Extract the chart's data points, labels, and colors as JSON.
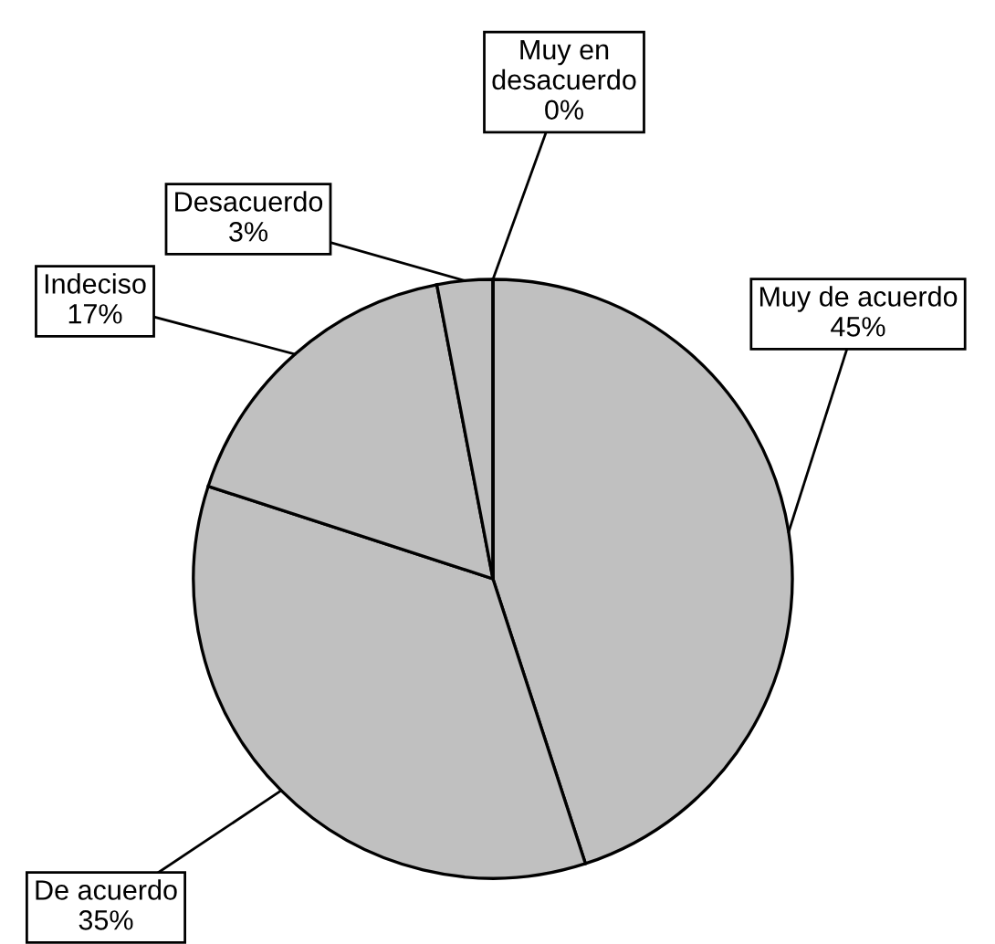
{
  "chart_data": {
    "type": "pie",
    "categories": [
      "Muy de acuerdo",
      "De acuerdo",
      "Indeciso",
      "Desacuerdo",
      "Muy en desacuerdo"
    ],
    "values": [
      45,
      35,
      17,
      3,
      0
    ],
    "value_labels": [
      "45%",
      "35%",
      "17%",
      "3%",
      "0%"
    ],
    "colors": [
      "#c0c0c0",
      "#c0c0c0",
      "#c0c0c0",
      "#c0c0c0",
      "#c0c0c0"
    ],
    "legend": false
  }
}
